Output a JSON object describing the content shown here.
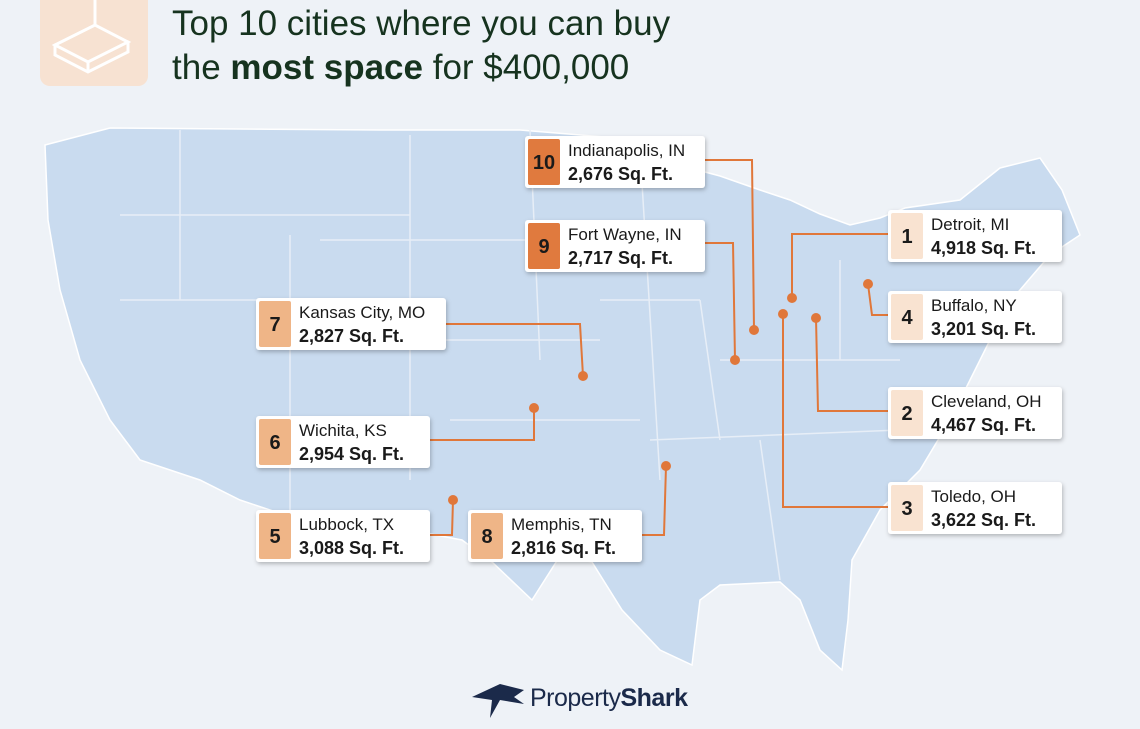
{
  "header": {
    "title_line1": "Top 10 cities where you can buy",
    "title_line2_start": "the",
    "title_line2_bold": "most space",
    "title_line2_end": "for $400,000"
  },
  "cities": [
    {
      "rank": 1,
      "name": "Detroit, MI",
      "area": "4,918 Sq. Ft."
    },
    {
      "rank": 2,
      "name": "Cleveland, OH",
      "area": "4,467 Sq. Ft."
    },
    {
      "rank": 3,
      "name": "Toledo, OH",
      "area": "3,622 Sq. Ft."
    },
    {
      "rank": 4,
      "name": "Buffalo, NY",
      "area": "3,201 Sq. Ft."
    },
    {
      "rank": 5,
      "name": "Lubbock, TX",
      "area": "3,088 Sq. Ft."
    },
    {
      "rank": 6,
      "name": "Wichita, KS",
      "area": "2,954 Sq. Ft."
    },
    {
      "rank": 7,
      "name": "Kansas City, MO",
      "area": "2,827 Sq. Ft."
    },
    {
      "rank": 8,
      "name": "Memphis, TN",
      "area": "2,816 Sq. Ft."
    },
    {
      "rank": 9,
      "name": "Fort Wayne, IN",
      "area": "2,717 Sq. Ft."
    },
    {
      "rank": 10,
      "name": "Indianapolis, IN",
      "area": "2,676 Sq. Ft."
    }
  ],
  "footer": {
    "brand_start": "Property",
    "brand_bold": "Shark"
  }
}
